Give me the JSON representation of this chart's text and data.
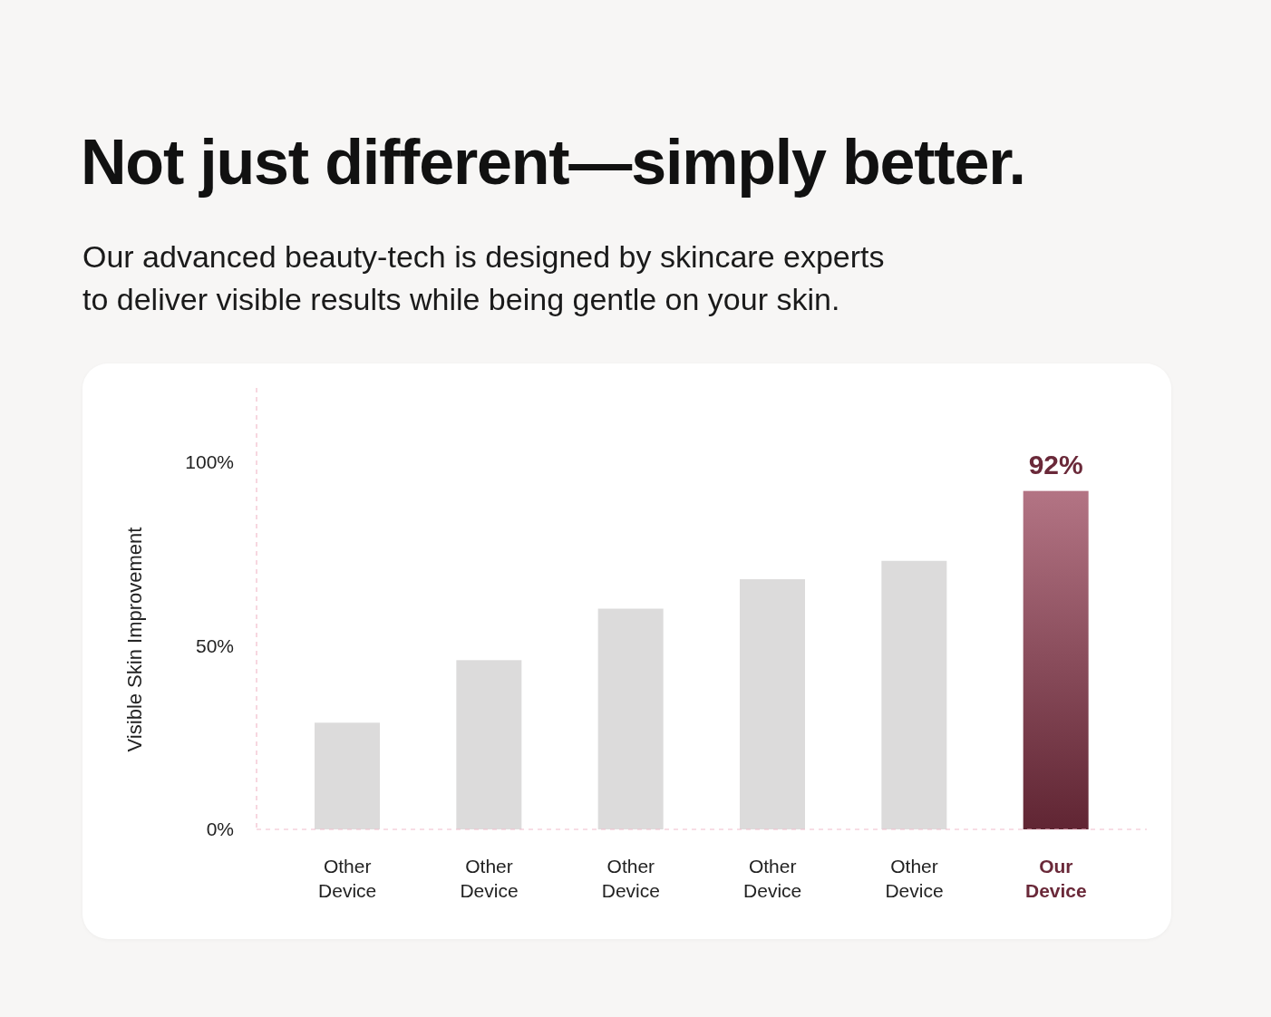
{
  "chart_data": {
    "type": "bar",
    "title": "Not just different—simply better.",
    "subtitle": "Our advanced beauty-tech is designed by skincare experts to deliver visible results while being gentle on your skin.",
    "ylabel": "Visible Skin Improvement",
    "categories": [
      "Other Device",
      "Other Device",
      "Other Device",
      "Other Device",
      "Other Device",
      "Our Device"
    ],
    "values": [
      29,
      46,
      60,
      68,
      73,
      92
    ],
    "colors": [
      "#dcdbdb",
      "#dcdbdb",
      "#dcdbdb",
      "#dcdbdb",
      "#dcdbdb",
      "#93394f"
    ],
    "value_labels": [
      null,
      null,
      null,
      null,
      null,
      "92%"
    ],
    "ylim": [
      0,
      120
    ],
    "yticks": [
      {
        "value": 0,
        "label": "0%"
      },
      {
        "value": 50,
        "label": "50%"
      },
      {
        "value": 100,
        "label": "100%"
      }
    ]
  }
}
